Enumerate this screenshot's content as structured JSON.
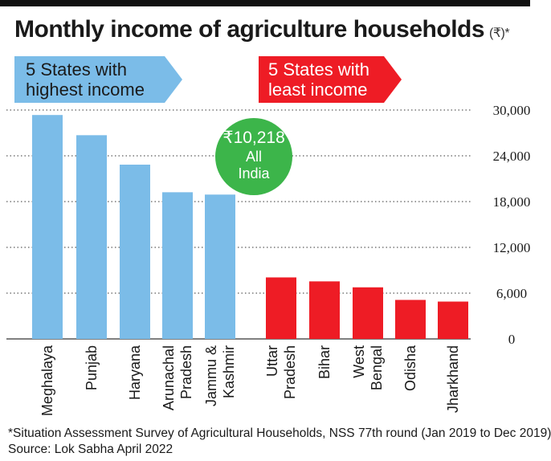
{
  "title": "Monthly income of agriculture households",
  "title_unit": "(₹)*",
  "groups": {
    "highest": {
      "label_line1": "5 States with",
      "label_line2": "highest income",
      "color": "#7bbce8"
    },
    "least": {
      "label_line1": "5 States with",
      "label_line2": "least income",
      "color": "#ee1c25"
    }
  },
  "all_india": {
    "value_label": "₹10,218",
    "label_line1": "All",
    "label_line2": "India",
    "color": "#3cb54a"
  },
  "footnote": {
    "line1": "*Situation Assessment Survey of Agricultural Households, NSS 77th round (Jan 2019 to Dec 2019)",
    "line2": "Source: Lok Sabha April 2022"
  },
  "chart_data": {
    "type": "bar",
    "title": "Monthly income of agriculture households",
    "unit": "₹",
    "ylim": [
      0,
      30000
    ],
    "yticks": [
      "0",
      "6,000",
      "12,000",
      "18,000",
      "24,000",
      "30,000"
    ],
    "ytick_values": [
      0,
      6000,
      12000,
      18000,
      24000,
      30000
    ],
    "y_axis_side": "right",
    "grid": true,
    "categories": [
      {
        "lines": [
          "Meghalaya"
        ],
        "group": "highest"
      },
      {
        "lines": [
          "Punjab"
        ],
        "group": "highest"
      },
      {
        "lines": [
          "Haryana"
        ],
        "group": "highest"
      },
      {
        "lines": [
          "Arunachal",
          "Pradesh"
        ],
        "group": "highest"
      },
      {
        "lines": [
          "Jammu &",
          "Kashmir"
        ],
        "group": "highest"
      },
      {
        "lines": [
          "Uttar",
          "Pradesh"
        ],
        "group": "least"
      },
      {
        "lines": [
          "Bihar"
        ],
        "group": "least"
      },
      {
        "lines": [
          "West",
          "Bengal"
        ],
        "group": "least"
      },
      {
        "lines": [
          "Odisha"
        ],
        "group": "least"
      },
      {
        "lines": [
          "Jharkhand"
        ],
        "group": "least"
      }
    ],
    "values": [
      29348,
      26701,
      22841,
      19225,
      18918,
      8061,
      7542,
      6762,
      5112,
      4895
    ]
  }
}
